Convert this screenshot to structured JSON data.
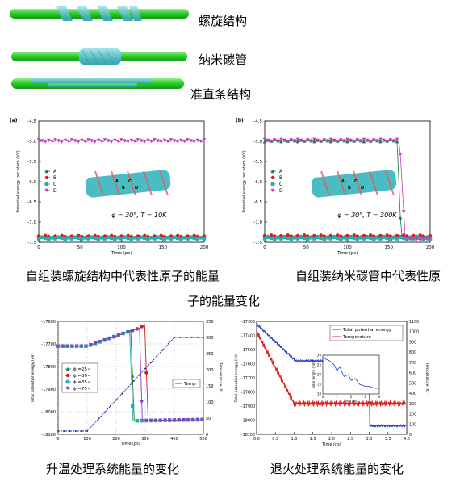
{
  "top_labels": [
    "螺旋结构",
    "纳米碳管",
    "准直条结构"
  ],
  "captions": {
    "a": "自组装螺旋结构中代表性原子的能量",
    "b_line1": "自组装纳米碳管中代表性原",
    "b_line2": "子的能量变化",
    "c": "升温处理系统能量的变化",
    "d": "退火处理系统能量的变化"
  },
  "colors": {
    "green_tube": "#2ecc2e",
    "cyan_ribbon": "#3cb6c0",
    "A": "#1a7a3a",
    "B": "#d42020",
    "C": "#20b0b0",
    "D": "#c040c0",
    "blue": "#1f3fd0",
    "red": "#e02020"
  },
  "chart_data": [
    {
      "type": "scatter",
      "panel_label": "(a)",
      "xlabel": "Time (ps)",
      "ylabel": "Potential energy per atom (eV)",
      "xlim": [
        0,
        200
      ],
      "ylim": [
        -7.5,
        -4.5
      ],
      "xticks": [
        "0",
        "50",
        "100",
        "150",
        "200"
      ],
      "yticks": [
        "-4.5",
        "-5.0",
        "-5.5",
        "-6.0",
        "-6.5",
        "-7.0",
        "-7.5"
      ],
      "annotation": "φ = 30°, T = 10K",
      "legend": [
        "A",
        "B",
        "C",
        "D"
      ],
      "series": [
        {
          "name": "A",
          "values": [
            -7.38,
            -7.38
          ]
        },
        {
          "name": "B",
          "values": [
            -7.36,
            -7.36
          ]
        },
        {
          "name": "C",
          "values": [
            -7.4,
            -7.4
          ]
        },
        {
          "name": "D",
          "values": [
            -4.99,
            -4.99
          ]
        }
      ],
      "x": [
        0,
        200
      ]
    },
    {
      "type": "scatter",
      "panel_label": "(b)",
      "xlabel": "Time (ps)",
      "ylabel": "Potential energy per atom (eV)",
      "xlim": [
        0,
        200
      ],
      "ylim": [
        -7.5,
        -4.5
      ],
      "xticks": [
        "0",
        "50",
        "100",
        "150",
        "200"
      ],
      "yticks": [
        "-4.5",
        "-5.0",
        "-5.5",
        "-6.0",
        "-6.5",
        "-7.0",
        "-7.5"
      ],
      "annotation": "φ = 30°, T = 300K",
      "legend": [
        "A",
        "B",
        "C",
        "D"
      ],
      "series": [
        {
          "name": "A",
          "x": [
            0,
            160,
            165,
            200
          ],
          "values": [
            -4.98,
            -4.98,
            -7.38,
            -7.38
          ]
        },
        {
          "name": "B",
          "x": [
            0,
            200
          ],
          "values": [
            -7.35,
            -7.35
          ]
        },
        {
          "name": "C",
          "x": [
            0,
            200
          ],
          "values": [
            -7.4,
            -7.4
          ]
        },
        {
          "name": "D",
          "x": [
            0,
            163,
            170,
            200
          ],
          "values": [
            -4.98,
            -4.98,
            -7.42,
            -7.42
          ]
        }
      ]
    },
    {
      "type": "line",
      "xlabel": "Time (ps)",
      "ylabel": "Total potential energy (eV)",
      "y2label": "Temperature (K)",
      "xlim": [
        0,
        500
      ],
      "ylim": [
        -18100,
        -17600
      ],
      "y2lim": [
        0,
        350
      ],
      "xticks": [
        "0",
        "100",
        "200",
        "300",
        "400",
        "500"
      ],
      "yticks": [
        "-17600",
        "-17700",
        "-17800",
        "-17900",
        "-18000",
        "-18100"
      ],
      "y2ticks": [
        "0",
        "50",
        "100",
        "150",
        "200",
        "250",
        "300",
        "350"
      ],
      "legend": [
        "ϕ =25∘",
        "ϕ =30∘",
        "ϕ =35∘",
        "ϕ =75∘"
      ],
      "legend2": [
        "Temp"
      ],
      "series": [
        {
          "name": "ϕ =25∘",
          "x": [
            0,
            100,
            230,
            250,
            262,
            500
          ],
          "values": [
            -17710,
            -17710,
            -17650,
            -17640,
            -18040,
            -18035
          ]
        },
        {
          "name": "ϕ =30∘",
          "x": [
            0,
            100,
            280,
            298,
            310,
            500
          ],
          "values": [
            -17710,
            -17710,
            -17630,
            -17615,
            -18040,
            -18035
          ]
        },
        {
          "name": "ϕ =35∘",
          "x": [
            0,
            100,
            235,
            246,
            258,
            500
          ],
          "values": [
            -17710,
            -17710,
            -17648,
            -17645,
            -18040,
            -18035
          ]
        },
        {
          "name": "ϕ =75∘",
          "x": [
            0,
            100,
            270,
            280,
            290,
            500
          ],
          "values": [
            -17710,
            -17710,
            -17635,
            -17630,
            -18040,
            -18035
          ]
        },
        {
          "name": "Temp",
          "axis": "y2",
          "x": [
            0,
            100,
            400,
            500
          ],
          "values": [
            10,
            10,
            300,
            300
          ]
        }
      ]
    },
    {
      "type": "line",
      "xlabel": "Time (ns)",
      "ylabel": "Total potential energy (eV)",
      "y2label": "Temperature (K)",
      "xlim": [
        0,
        4.0
      ],
      "ylim": [
        -18100,
        -17300
      ],
      "y2lim": [
        0,
        1100
      ],
      "xticks": [
        "0.0",
        "0.5",
        "1.0",
        "1.5",
        "2.0",
        "2.5",
        "3.0",
        "3.5",
        "4.0"
      ],
      "yticks": [
        "-17300",
        "-17400",
        "-17500",
        "-17600",
        "-17700",
        "-17800",
        "-17900",
        "-18000",
        "-18100"
      ],
      "y2ticks": [
        "0",
        "100",
        "200",
        "300",
        "400",
        "500",
        "600",
        "700",
        "800",
        "900",
        "1000",
        "1100"
      ],
      "legend": [
        "Total potential energy",
        "Temperature"
      ],
      "series": [
        {
          "name": "Total potential energy",
          "x": [
            0,
            1.0,
            1.02,
            3.0,
            3.02,
            4.0
          ],
          "values": [
            -17320,
            -17570,
            -17580,
            -17580,
            -18040,
            -18040
          ]
        },
        {
          "name": "Temperature",
          "axis": "y2",
          "x": [
            0,
            1.0,
            4.0
          ],
          "values": [
            1000,
            300,
            300
          ]
        }
      ],
      "inset": {
        "xlabel": "time (ns)",
        "ylabel": "Total length (nm)",
        "xticks": [
          "0",
          "1",
          "2",
          "3",
          "4"
        ],
        "yticks": [
          "10",
          "15",
          "20",
          "25",
          "30"
        ],
        "xlim": [
          0,
          4
        ],
        "ylim": [
          10,
          30
        ],
        "x": [
          0,
          0.2,
          0.5,
          0.8,
          1.0,
          1.2,
          1.5,
          1.8,
          2.0,
          2.3,
          2.6,
          3.0,
          3.3,
          3.6,
          4.0
        ],
        "values": [
          29,
          28,
          27,
          25,
          22,
          24,
          19,
          20,
          17,
          18,
          15,
          14,
          14,
          13,
          13
        ]
      }
    }
  ]
}
